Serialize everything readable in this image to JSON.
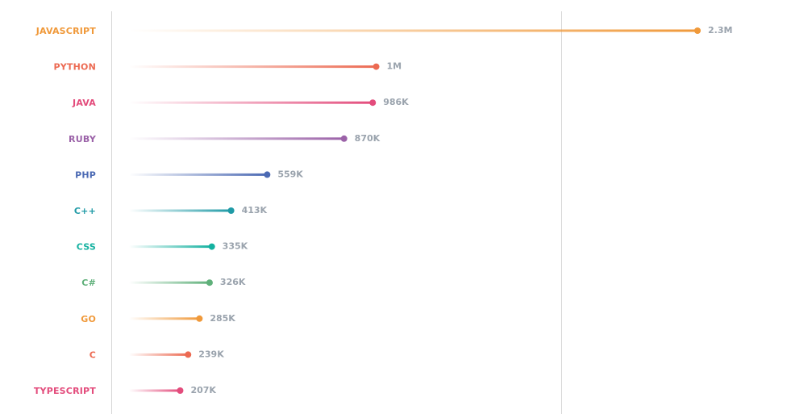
{
  "chart_data": {
    "type": "lollipop",
    "categories": [
      "JAVASCRIPT",
      "PYTHON",
      "JAVA",
      "RUBY",
      "PHP",
      "C++",
      "CSS",
      "C#",
      "GO",
      "C",
      "TYPESCRIPT"
    ],
    "values": [
      2300000,
      1000000,
      986000,
      870000,
      559000,
      413000,
      335000,
      326000,
      285000,
      239000,
      207000
    ],
    "value_labels": [
      "2.3M",
      "1M",
      "986K",
      "870K",
      "559K",
      "413K",
      "335K",
      "326K",
      "285K",
      "239K",
      "207K"
    ],
    "colors": [
      "#f0993a",
      "#ec6a52",
      "#e34c7c",
      "#9b62a8",
      "#4b69b3",
      "#1f9aa6",
      "#14b1a0",
      "#5fb07a",
      "#f0993a",
      "#ec6a52",
      "#e34c7c"
    ],
    "xlim": [
      0,
      2600000
    ],
    "gridlines": [
      1750000
    ],
    "grid": true,
    "legend": "none"
  }
}
